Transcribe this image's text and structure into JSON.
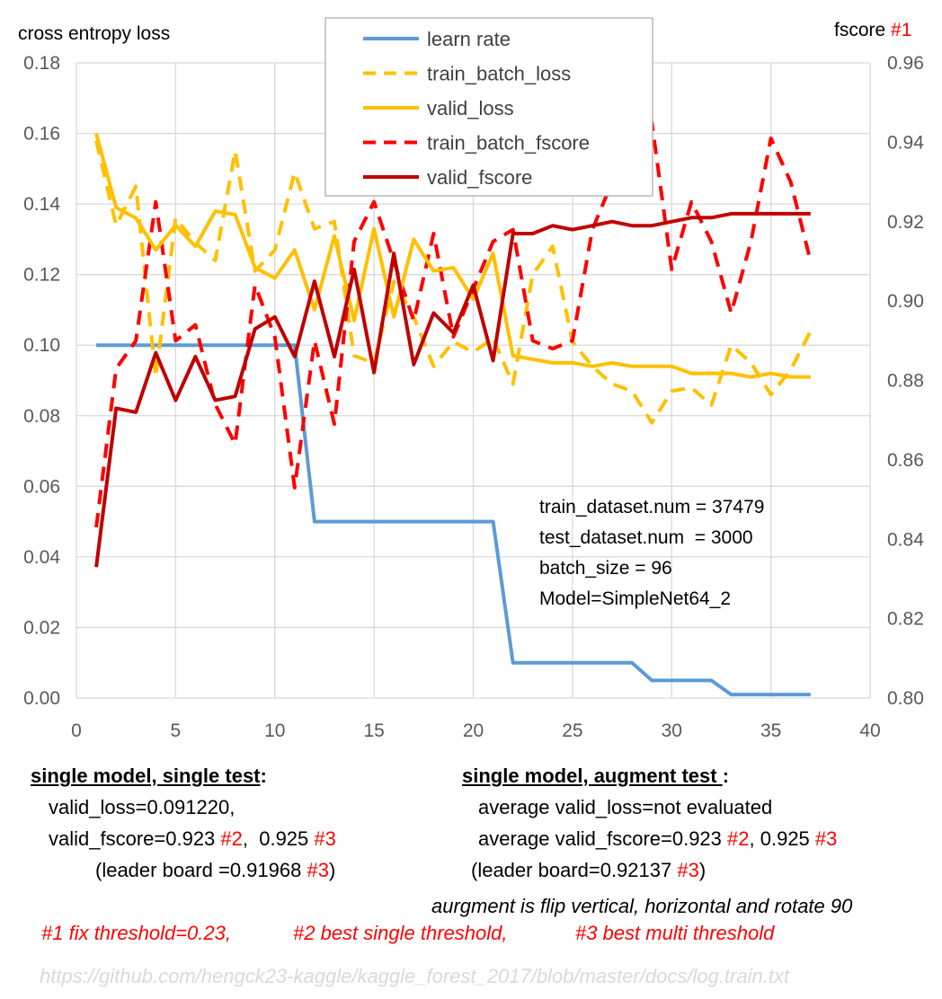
{
  "chart_data": {
    "type": "line",
    "left_axis_title": "cross entropy loss",
    "right_axis_title": "fscore",
    "right_axis_marker": "#1",
    "left_ylim": [
      0,
      0.18
    ],
    "left_ticks": [
      "0.00",
      "0.02",
      "0.04",
      "0.06",
      "0.08",
      "0.10",
      "0.12",
      "0.14",
      "0.16",
      "0.18"
    ],
    "right_ylim": [
      0.8,
      0.96
    ],
    "right_ticks": [
      "0.80",
      "0.82",
      "0.84",
      "0.86",
      "0.88",
      "0.90",
      "0.92",
      "0.94",
      "0.96"
    ],
    "xlim": [
      0,
      40
    ],
    "x_ticks": [
      "0",
      "5",
      "10",
      "15",
      "20",
      "25",
      "30",
      "35",
      "40"
    ],
    "grid": true,
    "legend_position": "top-center",
    "series": [
      {
        "name": "learn rate",
        "axis": "left",
        "color": "#5b9bd5",
        "dash": false,
        "x": [
          1,
          2,
          3,
          4,
          5,
          6,
          7,
          8,
          9,
          10,
          11,
          12,
          13,
          14,
          15,
          16,
          17,
          18,
          19,
          20,
          21,
          22,
          23,
          24,
          25,
          26,
          27,
          28,
          29,
          30,
          31,
          32,
          33,
          34,
          35,
          36,
          37
        ],
        "values": [
          0.1,
          0.1,
          0.1,
          0.1,
          0.1,
          0.1,
          0.1,
          0.1,
          0.1,
          0.1,
          0.1,
          0.05,
          0.05,
          0.05,
          0.05,
          0.05,
          0.05,
          0.05,
          0.05,
          0.05,
          0.05,
          0.01,
          0.01,
          0.01,
          0.01,
          0.01,
          0.01,
          0.01,
          0.005,
          0.005,
          0.005,
          0.005,
          0.001,
          0.001,
          0.001,
          0.001,
          0.001
        ]
      },
      {
        "name": "train_batch_loss",
        "axis": "left",
        "color": "#ffc000",
        "dash": true,
        "x": [
          1,
          2,
          3,
          4,
          5,
          6,
          7,
          8,
          9,
          10,
          11,
          12,
          13,
          14,
          15,
          16,
          17,
          18,
          19,
          20,
          21,
          22,
          23,
          24,
          25,
          26,
          27,
          28,
          29,
          30,
          31,
          32,
          33,
          34,
          35,
          36,
          37
        ],
        "values": [
          0.158,
          0.134,
          0.145,
          0.091,
          0.136,
          0.129,
          0.124,
          0.155,
          0.121,
          0.127,
          0.149,
          0.133,
          0.135,
          0.097,
          0.095,
          0.118,
          0.108,
          0.094,
          0.101,
          0.098,
          0.102,
          0.089,
          0.12,
          0.128,
          0.101,
          0.094,
          0.089,
          0.087,
          0.078,
          0.087,
          0.088,
          0.083,
          0.1,
          0.095,
          0.086,
          0.093,
          0.104
        ]
      },
      {
        "name": "valid_loss",
        "axis": "left",
        "color": "#ffc000",
        "dash": false,
        "x": [
          1,
          2,
          3,
          4,
          5,
          6,
          7,
          8,
          9,
          10,
          11,
          12,
          13,
          14,
          15,
          16,
          17,
          18,
          19,
          20,
          21,
          22,
          23,
          24,
          25,
          26,
          27,
          28,
          29,
          30,
          31,
          32,
          33,
          34,
          35,
          36,
          37
        ],
        "values": [
          0.16,
          0.139,
          0.136,
          0.127,
          0.134,
          0.128,
          0.138,
          0.137,
          0.122,
          0.119,
          0.127,
          0.11,
          0.131,
          0.107,
          0.133,
          0.108,
          0.13,
          0.121,
          0.122,
          0.113,
          0.126,
          0.097,
          0.096,
          0.095,
          0.095,
          0.094,
          0.095,
          0.094,
          0.094,
          0.094,
          0.092,
          0.092,
          0.092,
          0.091,
          0.092,
          0.091,
          0.091
        ]
      },
      {
        "name": "train_batch_fscore",
        "axis": "right",
        "color": "#ff0000",
        "dash": true,
        "x": [
          1,
          2,
          3,
          4,
          5,
          6,
          7,
          8,
          9,
          10,
          11,
          12,
          13,
          14,
          15,
          16,
          17,
          18,
          19,
          20,
          21,
          22,
          23,
          24,
          25,
          26,
          27,
          28,
          29,
          30,
          31,
          32,
          33,
          34,
          35,
          36,
          37
        ],
        "values": [
          0.843,
          0.883,
          0.89,
          0.925,
          0.89,
          0.894,
          0.874,
          0.864,
          0.904,
          0.891,
          0.853,
          0.89,
          0.869,
          0.915,
          0.925,
          0.91,
          0.895,
          0.917,
          0.891,
          0.903,
          0.915,
          0.918,
          0.89,
          0.888,
          0.89,
          0.918,
          0.93,
          0.935,
          0.945,
          0.908,
          0.925,
          0.915,
          0.897,
          0.915,
          0.941,
          0.93,
          0.91
        ]
      },
      {
        "name": "valid_fscore",
        "axis": "right",
        "color": "#c00000",
        "dash": false,
        "x": [
          1,
          2,
          3,
          4,
          5,
          6,
          7,
          8,
          9,
          10,
          11,
          12,
          13,
          14,
          15,
          16,
          17,
          18,
          19,
          20,
          21,
          22,
          23,
          24,
          25,
          26,
          27,
          28,
          29,
          30,
          31,
          32,
          33,
          34,
          35,
          36,
          37
        ],
        "values": [
          0.833,
          0.873,
          0.872,
          0.887,
          0.875,
          0.886,
          0.875,
          0.876,
          0.893,
          0.896,
          0.886,
          0.905,
          0.886,
          0.908,
          0.882,
          0.912,
          0.884,
          0.897,
          0.892,
          0.904,
          0.885,
          0.917,
          0.917,
          0.919,
          0.918,
          0.919,
          0.92,
          0.919,
          0.919,
          0.92,
          0.921,
          0.921,
          0.922,
          0.922,
          0.922,
          0.922,
          0.922
        ]
      }
    ]
  },
  "info_box": [
    "train_dataset.num = 37479",
    "test_dataset.num  = 3000",
    "batch_size = 96",
    "Model=SimpleNet64_2"
  ],
  "notes_left": {
    "heading": "single model, single test",
    "heading_suffix": ":",
    "loss": "valid_loss=0.091220,",
    "fscore_a": "valid_fscore=0.923 ",
    "fscore_a_tag": "#2",
    "fscore_b": ",  0.925 ",
    "fscore_b_tag": "#3",
    "leader_a": "(leader board =0.91968 ",
    "leader_tag": "#3",
    "leader_b": ")"
  },
  "notes_right": {
    "heading": "single model, augment test ",
    "heading_suffix": ":",
    "loss": "average valid_loss=not evaluated",
    "fscore_a": "average valid_fscore=0.923 ",
    "fscore_a_tag": "#2",
    "fscore_b": ", 0.925 ",
    "fscore_b_tag": "#3",
    "leader_a": "(leader board=0.92137 ",
    "leader_tag": "#3",
    "leader_b": ")"
  },
  "augment_note": "aurgment is flip vertical, horizontal and rotate 90",
  "footnotes": {
    "n1": "#1 fix threshold=0.23,",
    "n2": "#2 best single threshold,",
    "n3": "#3 best multi threshold"
  },
  "source_url": "https://github.com/hengck23-kaggle/kaggle_forest_2017/blob/master/docs/log.train.txt"
}
